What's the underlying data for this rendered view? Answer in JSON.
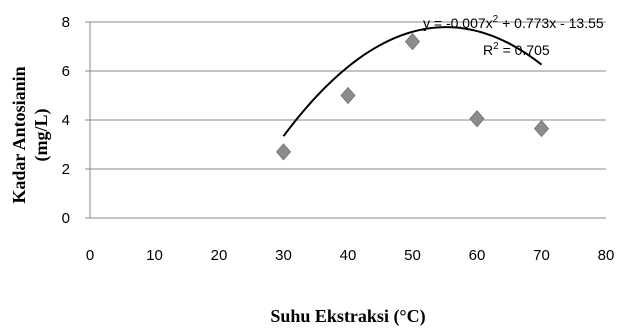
{
  "chart_data": {
    "type": "scatter",
    "xlabel": "Suhu Ekstraksi (°C)",
    "ylabel_line1": "Kadar Antosianin",
    "ylabel_line2": "(mg/L)",
    "xlim": [
      0,
      80
    ],
    "ylim": [
      0,
      8
    ],
    "x_ticks": [
      "0",
      "10",
      "20",
      "30",
      "40",
      "50",
      "60",
      "70",
      "80"
    ],
    "y_ticks": [
      "0",
      "2",
      "4",
      "6",
      "8"
    ],
    "grid": "horizontal",
    "marker": "diamond",
    "marker_color": "#8c8c8c",
    "trendline_color": "#000000",
    "points": [
      {
        "x": 30,
        "y": 2.7
      },
      {
        "x": 40,
        "y": 5.0
      },
      {
        "x": 50,
        "y": 7.2
      },
      {
        "x": 60,
        "y": 4.05
      },
      {
        "x": 70,
        "y": 3.65
      }
    ],
    "trendline": {
      "type": "polynomial",
      "coefficients": {
        "a": -0.007,
        "b": 0.773,
        "c": -13.55
      },
      "x_range": [
        30,
        70
      ],
      "equation_prefix": "y = -0.007x",
      "equation_exp": "2",
      "equation_suffix": " + 0.773x - 13.55",
      "r2_prefix": "R",
      "r2_exp": "2",
      "r2_suffix": " = 0.705"
    }
  }
}
